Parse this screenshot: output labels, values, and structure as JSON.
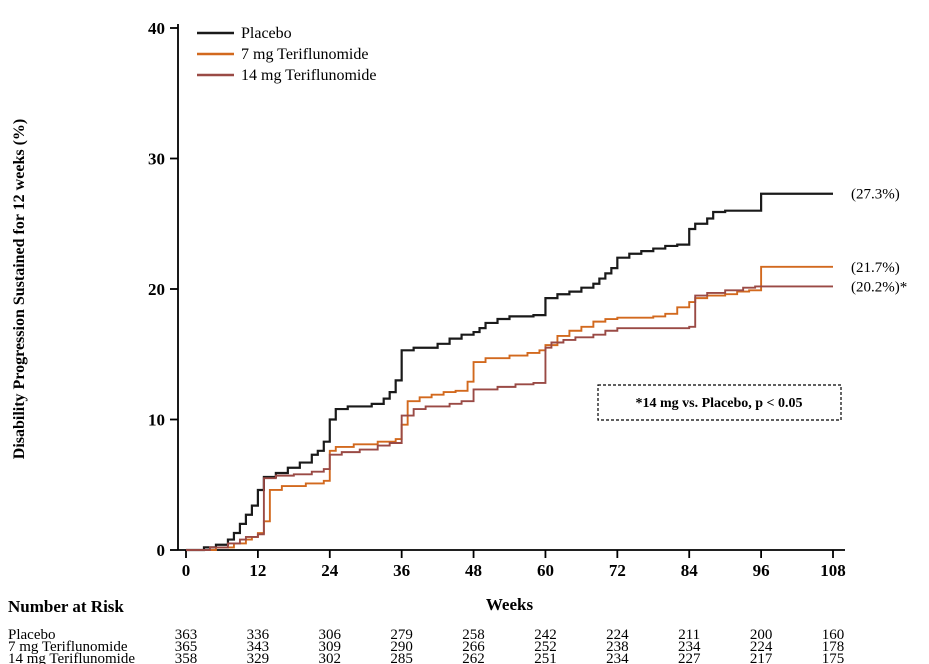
{
  "figure": {
    "ylabel": "Disability Progression Sustained for 12 weeks (%)",
    "xlabel": "Weeks",
    "annotation": "*14 mg vs. Placebo, p < 0.05",
    "number_at_risk_title": "Number at Risk"
  },
  "chart_data": {
    "type": "line",
    "subtype": "step",
    "title": "",
    "xlabel": "Weeks",
    "ylabel": "Disability Progression Sustained for 12 weeks (%)",
    "xlim": [
      0,
      108
    ],
    "ylim": [
      0,
      40
    ],
    "xticks": [
      0,
      12,
      24,
      36,
      48,
      60,
      72,
      84,
      96,
      108
    ],
    "yticks": [
      0,
      10,
      20,
      30,
      40
    ],
    "grid": false,
    "legend_position": "top-left",
    "annotation": "*14 mg vs. Placebo, p < 0.05",
    "series": [
      {
        "name": "Placebo",
        "color": "#1a1a1a",
        "end_label": "(27.3%)",
        "final_value": 27.3,
        "points": [
          [
            0,
            0
          ],
          [
            3,
            0.2
          ],
          [
            5,
            0.4
          ],
          [
            7,
            0.8
          ],
          [
            8,
            1.3
          ],
          [
            9,
            2.0
          ],
          [
            10,
            2.7
          ],
          [
            11,
            3.4
          ],
          [
            12,
            4.6
          ],
          [
            13,
            5.6
          ],
          [
            15,
            5.9
          ],
          [
            17,
            6.3
          ],
          [
            19,
            6.7
          ],
          [
            21,
            7.3
          ],
          [
            22,
            7.6
          ],
          [
            23,
            8.3
          ],
          [
            24,
            10.0
          ],
          [
            25,
            10.8
          ],
          [
            27,
            11.0
          ],
          [
            31,
            11.2
          ],
          [
            33,
            11.6
          ],
          [
            34,
            12.1
          ],
          [
            35,
            13.0
          ],
          [
            36,
            15.3
          ],
          [
            38,
            15.5
          ],
          [
            42,
            15.8
          ],
          [
            44,
            16.2
          ],
          [
            46,
            16.5
          ],
          [
            48,
            16.7
          ],
          [
            49,
            17.0
          ],
          [
            50,
            17.4
          ],
          [
            52,
            17.7
          ],
          [
            54,
            17.9
          ],
          [
            58,
            18.0
          ],
          [
            60,
            19.3
          ],
          [
            62,
            19.6
          ],
          [
            64,
            19.8
          ],
          [
            66,
            20.1
          ],
          [
            68,
            20.4
          ],
          [
            69,
            20.8
          ],
          [
            70,
            21.2
          ],
          [
            71,
            21.6
          ],
          [
            72,
            22.4
          ],
          [
            74,
            22.7
          ],
          [
            76,
            22.9
          ],
          [
            78,
            23.1
          ],
          [
            80,
            23.3
          ],
          [
            82,
            23.4
          ],
          [
            84,
            24.6
          ],
          [
            85,
            25.0
          ],
          [
            87,
            25.4
          ],
          [
            88,
            25.9
          ],
          [
            90,
            26.0
          ],
          [
            96,
            27.3
          ],
          [
            108,
            27.3
          ]
        ]
      },
      {
        "name": "7 mg Teriflunomide",
        "color": "#d2691e",
        "end_label": "(21.7%)",
        "final_value": 21.7,
        "points": [
          [
            0,
            0
          ],
          [
            5,
            0.2
          ],
          [
            8,
            0.5
          ],
          [
            10,
            0.8
          ],
          [
            11,
            1.0
          ],
          [
            12,
            1.3
          ],
          [
            13,
            2.2
          ],
          [
            14,
            4.6
          ],
          [
            16,
            4.9
          ],
          [
            20,
            5.1
          ],
          [
            23,
            5.3
          ],
          [
            24,
            7.6
          ],
          [
            25,
            7.9
          ],
          [
            28,
            8.1
          ],
          [
            32,
            8.3
          ],
          [
            35,
            8.5
          ],
          [
            36,
            9.6
          ],
          [
            37,
            11.4
          ],
          [
            39,
            11.7
          ],
          [
            41,
            11.9
          ],
          [
            43,
            12.1
          ],
          [
            45,
            12.2
          ],
          [
            47,
            12.9
          ],
          [
            48,
            14.4
          ],
          [
            50,
            14.7
          ],
          [
            54,
            14.9
          ],
          [
            57,
            15.1
          ],
          [
            59,
            15.3
          ],
          [
            60,
            15.7
          ],
          [
            62,
            16.4
          ],
          [
            64,
            16.8
          ],
          [
            66,
            17.1
          ],
          [
            68,
            17.5
          ],
          [
            70,
            17.7
          ],
          [
            72,
            17.8
          ],
          [
            78,
            17.9
          ],
          [
            80,
            18.1
          ],
          [
            82,
            18.6
          ],
          [
            84,
            19.0
          ],
          [
            85,
            19.3
          ],
          [
            87,
            19.5
          ],
          [
            90,
            19.6
          ],
          [
            92,
            19.8
          ],
          [
            94,
            19.9
          ],
          [
            96,
            21.7
          ],
          [
            108,
            21.7
          ]
        ]
      },
      {
        "name": "14 mg Teriflunomide",
        "color": "#9a4a45",
        "end_label": "(20.2%)*",
        "final_value": 20.2,
        "points": [
          [
            0,
            0
          ],
          [
            4,
            0.2
          ],
          [
            7,
            0.5
          ],
          [
            9,
            0.8
          ],
          [
            10,
            1.0
          ],
          [
            12,
            1.2
          ],
          [
            13,
            5.5
          ],
          [
            15,
            5.7
          ],
          [
            18,
            5.8
          ],
          [
            21,
            6.0
          ],
          [
            23,
            6.2
          ],
          [
            24,
            7.3
          ],
          [
            26,
            7.5
          ],
          [
            29,
            7.7
          ],
          [
            32,
            8.0
          ],
          [
            34,
            8.2
          ],
          [
            36,
            10.3
          ],
          [
            38,
            10.8
          ],
          [
            40,
            11.0
          ],
          [
            44,
            11.2
          ],
          [
            46,
            11.4
          ],
          [
            48,
            12.3
          ],
          [
            52,
            12.5
          ],
          [
            55,
            12.7
          ],
          [
            58,
            12.8
          ],
          [
            60,
            15.5
          ],
          [
            61,
            15.9
          ],
          [
            63,
            16.1
          ],
          [
            65,
            16.3
          ],
          [
            68,
            16.5
          ],
          [
            70,
            16.8
          ],
          [
            72,
            17.0
          ],
          [
            84,
            17.1
          ],
          [
            85,
            19.5
          ],
          [
            87,
            19.7
          ],
          [
            90,
            19.9
          ],
          [
            93,
            20.1
          ],
          [
            95,
            20.2
          ],
          [
            108,
            20.2
          ]
        ]
      }
    ],
    "number_at_risk": {
      "title": "Number at Risk",
      "weeks": [
        0,
        12,
        24,
        36,
        48,
        60,
        72,
        84,
        96,
        108
      ],
      "rows": [
        {
          "label": "Placebo",
          "values": [
            363,
            336,
            306,
            279,
            258,
            242,
            224,
            211,
            200,
            160
          ]
        },
        {
          "label": "7 mg Teriflunomide",
          "values": [
            365,
            343,
            309,
            290,
            266,
            252,
            238,
            234,
            224,
            178
          ]
        },
        {
          "label": "14 mg Teriflunomide",
          "values": [
            358,
            329,
            302,
            285,
            262,
            251,
            234,
            227,
            217,
            175
          ]
        }
      ]
    }
  }
}
